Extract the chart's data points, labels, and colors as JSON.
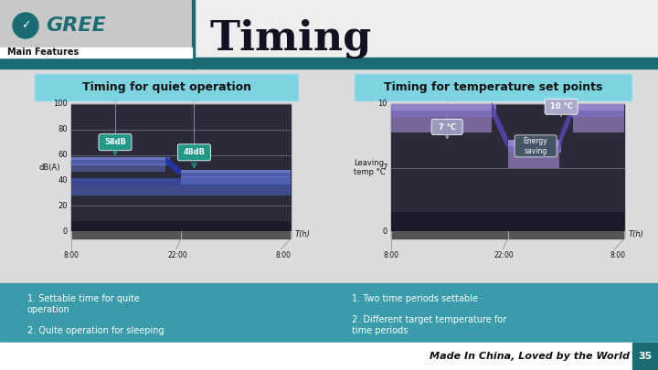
{
  "bg_color": "#e0e0e0",
  "header_teal": "#1a6b73",
  "header_left_bg": "#c5c5c5",
  "header_right_bg": "#f0f0f0",
  "title_text": "Timing",
  "subtitle_text": "Main Features",
  "gree_color": "#1a6b73",
  "section1_title": "Timing for quiet operation",
  "section2_title": "Timing for temperature set points",
  "section1_ylabel": "dB(A)",
  "section2_ylabel": "Leaving\ntemp °C",
  "xtick_labels": [
    "8:00",
    "22:00",
    "8:00",
    "T(h)"
  ],
  "panel_bg": "#2a2a38",
  "panel_grid": "#777788",
  "teal_box": "#7dd4e0",
  "bullet_bg": "#3a9baa",
  "footer_bg": "#ffffff",
  "footer_teal": "#1a6b73",
  "footer_text": "Made In China, Loved by the World",
  "footer_num": "35",
  "white": "#ffffff",
  "black": "#111111"
}
